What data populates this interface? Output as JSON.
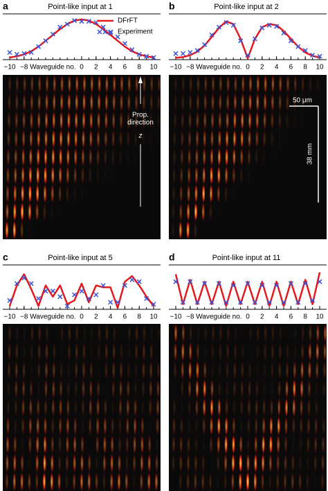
{
  "chart_data": [
    {
      "type": "line",
      "letter": "a",
      "title": "Point-like input at 1",
      "xlabel": "Waveguide no.",
      "x": [
        -10,
        -9,
        -8,
        -7,
        -6,
        -5,
        -4,
        -3,
        -2,
        -1,
        0,
        1,
        2,
        3,
        4,
        5,
        6,
        7,
        8,
        9,
        10
      ],
      "xlim": [
        -10,
        10
      ],
      "ylim": [
        0,
        1
      ],
      "xticks": [
        {
          "value": -10,
          "label": "−10"
        },
        {
          "value": -8,
          "label": "−8"
        },
        0,
        2,
        4,
        6,
        8,
        10
      ],
      "legend": "top-right",
      "annotations": [
        "Prop.",
        "direction",
        "z"
      ],
      "series": [
        {
          "name": "DFrFT",
          "color": "#e3191c",
          "values": [
            0.02,
            0.05,
            0.1,
            0.18,
            0.3,
            0.45,
            0.6,
            0.75,
            0.88,
            0.97,
            1.0,
            0.97,
            0.88,
            0.75,
            0.6,
            0.45,
            0.3,
            0.18,
            0.1,
            0.05,
            0.02
          ]
        },
        {
          "name": "Experiment",
          "color": "#3a52d6",
          "marker": "x",
          "values": [
            0.15,
            0.1,
            0.12,
            0.15,
            0.3,
            0.45,
            0.62,
            0.8,
            0.88,
            0.97,
            0.95,
            0.95,
            0.92,
            0.8,
            0.65,
            0.55,
            0.38,
            0.22,
            0.1,
            0.05,
            0.02
          ]
        }
      ]
    },
    {
      "type": "line",
      "letter": "b",
      "title": "Point-like input at 2",
      "xlabel": "Waveguide no.",
      "x": [
        -10,
        -9,
        -8,
        -7,
        -6,
        -5,
        -4,
        -3,
        -2,
        -1,
        0,
        1,
        2,
        3,
        4,
        5,
        6,
        7,
        8,
        9,
        10
      ],
      "xlim": [
        -10,
        10
      ],
      "ylim": [
        0,
        1
      ],
      "xticks": [
        {
          "value": -10,
          "label": "−10"
        },
        {
          "value": -8,
          "label": "−8"
        },
        0,
        2,
        4,
        6,
        8,
        10
      ],
      "annotations": [
        "50 μm",
        "38 mm"
      ],
      "series": [
        {
          "name": "DFrFT",
          "color": "#e3191c",
          "values": [
            0.01,
            0.03,
            0.08,
            0.17,
            0.33,
            0.55,
            0.78,
            0.95,
            0.88,
            0.5,
            0.0,
            0.5,
            0.8,
            0.88,
            0.85,
            0.7,
            0.5,
            0.3,
            0.15,
            0.06,
            0.02
          ]
        },
        {
          "name": "Experiment",
          "color": "#3a52d6",
          "marker": "x",
          "values": [
            0.12,
            0.12,
            0.15,
            0.2,
            0.35,
            0.6,
            0.8,
            0.92,
            0.85,
            0.45,
            0.08,
            0.5,
            0.78,
            0.85,
            0.82,
            0.65,
            0.45,
            0.3,
            0.2,
            0.08,
            0.05
          ]
        }
      ]
    },
    {
      "type": "line",
      "letter": "c",
      "title": "Point-like input at 5",
      "xlabel": "Waveguide no.",
      "x": [
        -10,
        -9,
        -8,
        -7,
        -6,
        -5,
        -4,
        -3,
        -2,
        -1,
        0,
        1,
        2,
        3,
        4,
        5,
        6,
        7,
        8,
        9,
        10
      ],
      "xlim": [
        -10,
        10
      ],
      "ylim": [
        0,
        1
      ],
      "xticks": [
        {
          "value": -10,
          "label": "−10"
        },
        {
          "value": -8,
          "label": "−8"
        },
        0,
        2,
        4,
        6,
        8,
        10
      ],
      "series": [
        {
          "name": "DFrFT",
          "color": "#e3191c",
          "values": [
            0.05,
            0.6,
            0.9,
            0.5,
            0.05,
            0.6,
            0.3,
            0.6,
            0.1,
            0.2,
            0.65,
            0.15,
            0.6,
            0.55,
            0.55,
            0.0,
            0.7,
            0.85,
            0.6,
            0.3,
            0.05
          ]
        },
        {
          "name": "Experiment",
          "color": "#3a52d6",
          "marker": "x",
          "values": [
            0.2,
            0.65,
            0.8,
            0.65,
            0.25,
            0.45,
            0.45,
            0.3,
            0.05,
            0.35,
            0.45,
            0.25,
            0.35,
            0.6,
            0.15,
            0.15,
            0.6,
            0.75,
            0.7,
            0.25,
            0.1
          ]
        }
      ]
    },
    {
      "type": "line",
      "letter": "d",
      "title": "Point-like input at 11",
      "xlabel": "Waveguide no.",
      "x": [
        -10,
        -9,
        -8,
        -7,
        -6,
        -5,
        -4,
        -3,
        -2,
        -1,
        0,
        1,
        2,
        3,
        4,
        5,
        6,
        7,
        8,
        9,
        10
      ],
      "xlim": [
        -10,
        10
      ],
      "ylim": [
        0,
        1
      ],
      "xticks": [
        {
          "value": -10,
          "label": "−10"
        },
        {
          "value": -8,
          "label": "−8"
        },
        0,
        2,
        4,
        6,
        8,
        10
      ],
      "series": [
        {
          "name": "DFrFT",
          "color": "#e3191c",
          "values": [
            0.9,
            0.1,
            0.75,
            0.1,
            0.7,
            0.1,
            0.7,
            0.05,
            0.7,
            0.1,
            0.7,
            0.1,
            0.7,
            0.05,
            0.7,
            0.05,
            0.7,
            0.1,
            0.75,
            0.1,
            0.95
          ]
        },
        {
          "name": "Experiment",
          "color": "#3a52d6",
          "marker": "x",
          "values": [
            0.7,
            0.15,
            0.7,
            0.15,
            0.65,
            0.15,
            0.65,
            0.15,
            0.6,
            0.15,
            0.65,
            0.15,
            0.6,
            0.15,
            0.6,
            0.15,
            0.65,
            0.15,
            0.65,
            0.2,
            0.7
          ]
        }
      ]
    }
  ]
}
